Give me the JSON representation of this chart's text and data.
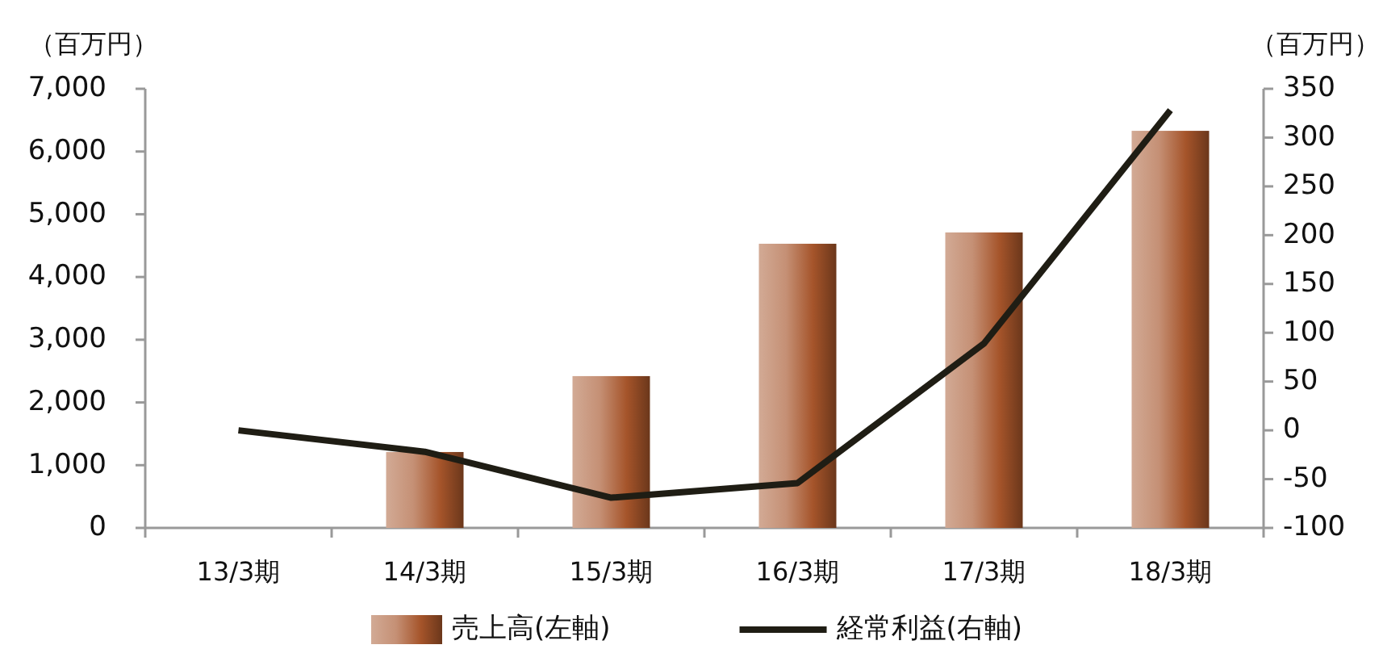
{
  "chart_data": {
    "type": "bar",
    "categories": [
      "13/3期",
      "14/3期",
      "15/3期",
      "16/3期",
      "17/3期",
      "18/3期"
    ],
    "ylabel": "（百万円）",
    "y2label": "（百万円）",
    "series": [
      {
        "name": "売上高(左軸)",
        "color": "#a5542a",
        "values": [
          null,
          1210,
          2420,
          4530,
          4710,
          6330
        ]
      },
      {
        "name": "経常利益(右軸)",
        "type": "line",
        "axis": "y2",
        "color": "#1f1d14",
        "values": [
          0,
          -22,
          -69,
          -54,
          89,
          328
        ]
      }
    ],
    "ylim": [
      0,
      7000
    ],
    "yticks": [
      {
        "value": 0,
        "label": "0"
      },
      {
        "value": 1000,
        "label": "1,000"
      },
      {
        "value": 2000,
        "label": "2,000"
      },
      {
        "value": 3000,
        "label": "3,000"
      },
      {
        "value": 4000,
        "label": "4,000"
      },
      {
        "value": 5000,
        "label": "5,000"
      },
      {
        "value": 6000,
        "label": "6,000"
      },
      {
        "value": 7000,
        "label": "7,000"
      }
    ],
    "y2lim": [
      -100,
      350
    ],
    "y2ticks": [
      -100,
      -50,
      0,
      50,
      100,
      150,
      200,
      250,
      300,
      350
    ],
    "legend": "bottom",
    "grid": false,
    "marker": "none",
    "line_style": "solid"
  }
}
